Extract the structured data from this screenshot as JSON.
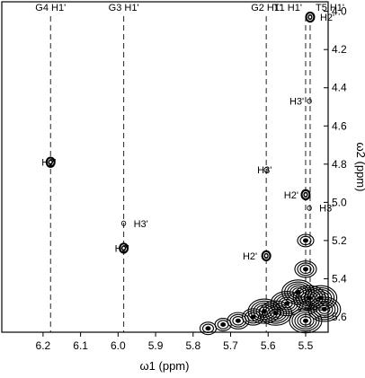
{
  "chart_data": {
    "type": "scatter",
    "subtype": "2D NMR contour spectrum",
    "xlabel": "ω1 (ppm)",
    "ylabel": "ω2 (ppm)",
    "xlim": [
      6.31,
      5.44
    ],
    "ylim": [
      3.95,
      5.68
    ],
    "x_reversed": true,
    "y_reversed": true,
    "y_axis_position": "right",
    "x_ticks": [
      6.2,
      6.1,
      6.0,
      5.9,
      5.8,
      5.7,
      5.6,
      5.5
    ],
    "x_tick_labels": [
      "6.2",
      "6.1",
      "6.0",
      "5.9",
      "5.8",
      "5.7",
      "5.6",
      "5.5"
    ],
    "y_ticks": [
      4.0,
      4.2,
      4.4,
      4.6,
      4.8,
      5.0,
      5.2,
      5.4,
      5.6
    ],
    "y_tick_labels": [
      "4.0",
      "4.2",
      "4.4",
      "4.6",
      "4.8",
      "5.0",
      "5.2",
      "5.4",
      "5.6"
    ],
    "grid": false,
    "reference_lines": [
      {
        "label": "G4 H1'",
        "x": 6.18
      },
      {
        "label": "G3 H1'",
        "x": 5.985
      },
      {
        "label": "G2 H1'",
        "x": 5.605
      },
      {
        "label": "T1 H1'",
        "x": 5.5
      },
      {
        "label": "T5 H1'",
        "x": 5.488
      }
    ],
    "peaks": [
      {
        "x": 5.488,
        "y": 4.03,
        "label": "H2'",
        "strength": "strong"
      },
      {
        "x": 5.49,
        "y": 4.47,
        "label": "H3'",
        "strength": "weak"
      },
      {
        "x": 6.18,
        "y": 4.79,
        "label": "H2'",
        "strength": "strong"
      },
      {
        "x": 5.605,
        "y": 4.83,
        "label": "H3'",
        "strength": "weak"
      },
      {
        "x": 5.5,
        "y": 4.96,
        "label": "H2'",
        "strength": "strong"
      },
      {
        "x": 5.49,
        "y": 5.03,
        "label": "H3'",
        "strength": "weak"
      },
      {
        "x": 5.985,
        "y": 5.11,
        "label": "H3'",
        "strength": "weak"
      },
      {
        "x": 5.985,
        "y": 5.24,
        "label": "H2'",
        "strength": "strong"
      },
      {
        "x": 5.605,
        "y": 5.28,
        "label": "H2'",
        "strength": "strong"
      }
    ],
    "diagonal_cluster": [
      {
        "x": 5.49,
        "y": 5.5,
        "strength": "strong"
      },
      {
        "x": 5.52,
        "y": 5.47,
        "strength": "strong"
      },
      {
        "x": 5.55,
        "y": 5.53,
        "strength": "strong"
      },
      {
        "x": 5.58,
        "y": 5.58,
        "strength": "strong"
      },
      {
        "x": 5.61,
        "y": 5.57,
        "strength": "strong"
      },
      {
        "x": 5.64,
        "y": 5.6,
        "strength": "medium"
      },
      {
        "x": 5.68,
        "y": 5.62,
        "strength": "medium"
      },
      {
        "x": 5.72,
        "y": 5.64,
        "strength": "weak"
      },
      {
        "x": 5.76,
        "y": 5.66,
        "strength": "weak"
      },
      {
        "x": 5.5,
        "y": 5.62,
        "strength": "strong"
      },
      {
        "x": 5.46,
        "y": 5.5,
        "strength": "strong"
      },
      {
        "x": 5.45,
        "y": 5.56,
        "strength": "strong"
      },
      {
        "x": 5.5,
        "y": 5.35,
        "strength": "medium"
      },
      {
        "x": 5.5,
        "y": 5.2,
        "strength": "weak"
      }
    ]
  }
}
